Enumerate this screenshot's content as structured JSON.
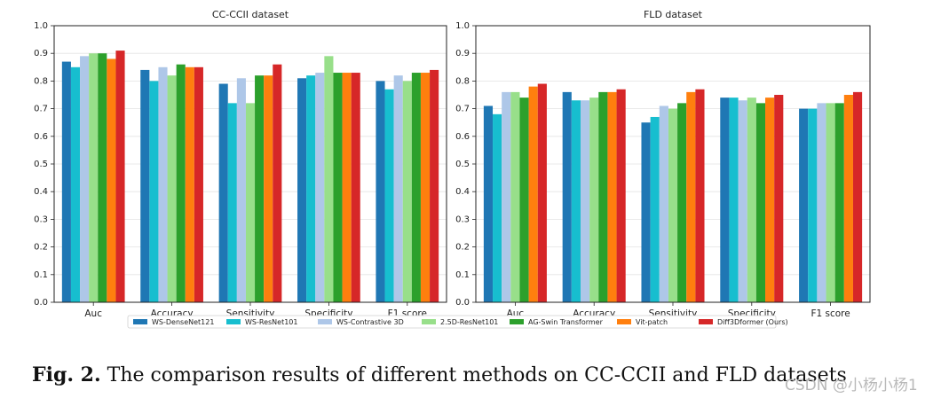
{
  "figure": {
    "caption_label": "Fig. 2.",
    "caption_text": "The comparison results of different methods on CC-CCII and FLD datasets",
    "watermark": "CSDN @小杨小杨1"
  },
  "legend": {
    "entries": [
      {
        "name": "WS-DenseNet121",
        "color": "#1f77b4"
      },
      {
        "name": "WS-ResNet101",
        "color": "#17becf"
      },
      {
        "name": "WS-Contrastive 3D",
        "color": "#aec7e8"
      },
      {
        "name": "2.5D-ResNet101",
        "color": "#98df8a"
      },
      {
        "name": "AG-Swin Transformer",
        "color": "#2ca02c"
      },
      {
        "name": "Vit-patch",
        "color": "#ff7f0e"
      },
      {
        "name": "Diff3Dformer (Ours)",
        "color": "#d62728"
      }
    ]
  },
  "chart_data": [
    {
      "type": "bar",
      "title": "CC-CCII dataset",
      "categories": [
        "Auc",
        "Accuracy",
        "Sensitivity",
        "Specificity",
        "F1 score"
      ],
      "ylim": [
        0,
        1.0
      ],
      "yticks": [
        "0.0",
        "0.1",
        "0.2",
        "0.3",
        "0.4",
        "0.5",
        "0.6",
        "0.7",
        "0.8",
        "0.9",
        "1.0"
      ],
      "grid": true,
      "series": [
        {
          "name": "WS-DenseNet121",
          "values": [
            0.87,
            0.84,
            0.79,
            0.81,
            0.8
          ]
        },
        {
          "name": "WS-ResNet101",
          "values": [
            0.85,
            0.8,
            0.72,
            0.82,
            0.77
          ]
        },
        {
          "name": "WS-Contrastive 3D",
          "values": [
            0.89,
            0.85,
            0.81,
            0.83,
            0.82
          ]
        },
        {
          "name": "2.5D-ResNet101",
          "values": [
            0.9,
            0.82,
            0.72,
            0.89,
            0.8
          ]
        },
        {
          "name": "AG-Swin Transformer",
          "values": [
            0.9,
            0.86,
            0.82,
            0.83,
            0.83
          ]
        },
        {
          "name": "Vit-patch",
          "values": [
            0.88,
            0.85,
            0.82,
            0.83,
            0.83
          ]
        },
        {
          "name": "Diff3Dformer (Ours)",
          "values": [
            0.91,
            0.85,
            0.86,
            0.83,
            0.84
          ]
        }
      ]
    },
    {
      "type": "bar",
      "title": "FLD dataset",
      "categories": [
        "Auc",
        "Accuracy",
        "Sensitivity",
        "Specificity",
        "F1 score"
      ],
      "ylim": [
        0,
        1.0
      ],
      "yticks": [
        "0.0",
        "0.1",
        "0.2",
        "0.3",
        "0.4",
        "0.5",
        "0.6",
        "0.7",
        "0.8",
        "0.9",
        "1.0"
      ],
      "grid": true,
      "series": [
        {
          "name": "WS-DenseNet121",
          "values": [
            0.71,
            0.76,
            0.65,
            0.74,
            0.7
          ]
        },
        {
          "name": "WS-ResNet101",
          "values": [
            0.68,
            0.73,
            0.67,
            0.74,
            0.7
          ]
        },
        {
          "name": "WS-Contrastive 3D",
          "values": [
            0.76,
            0.73,
            0.71,
            0.73,
            0.72
          ]
        },
        {
          "name": "2.5D-ResNet101",
          "values": [
            0.76,
            0.74,
            0.7,
            0.74,
            0.72
          ]
        },
        {
          "name": "AG-Swin Transformer",
          "values": [
            0.74,
            0.76,
            0.72,
            0.72,
            0.72
          ]
        },
        {
          "name": "Vit-patch",
          "values": [
            0.78,
            0.76,
            0.76,
            0.74,
            0.75
          ]
        },
        {
          "name": "Diff3Dformer (Ours)",
          "values": [
            0.79,
            0.77,
            0.77,
            0.75,
            0.76
          ]
        }
      ]
    }
  ]
}
